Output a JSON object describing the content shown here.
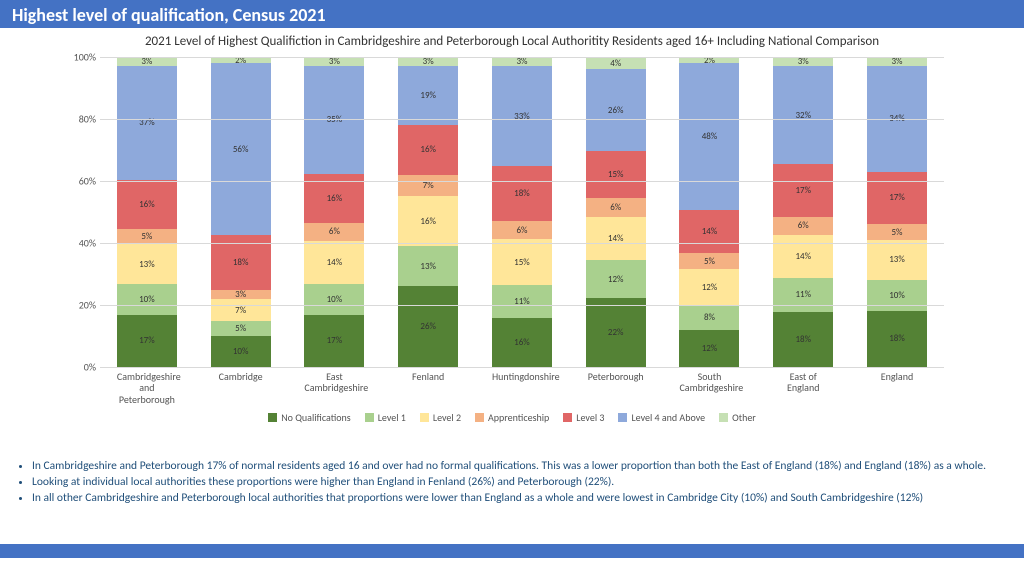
{
  "title": "Highest level of qualification, Census 2021",
  "chart": {
    "type": "stacked-bar-100",
    "title": "2021 Level of Highest Qualifiction in Cambridgeshire and Peterborough Local Authoritity Residents aged 16+ Including National Comparison",
    "ylim": [
      0,
      100
    ],
    "ytick_step": 20,
    "ytick_suffix": "%",
    "grid_color": "#d9d9d9",
    "background_color": "#ffffff",
    "categories": [
      "Cambridgeshire and Peterborough",
      "Cambridge",
      "East Cambridgeshire",
      "Fenland",
      "Huntingdonshire",
      "Peterborough",
      "South Cambridgeshire",
      "East of England",
      "England"
    ],
    "series": [
      {
        "name": "No Qualifications",
        "color": "#548235",
        "values": [
          17,
          10,
          17,
          26,
          16,
          22,
          12,
          18,
          18
        ]
      },
      {
        "name": "Level 1",
        "color": "#a9d08e",
        "values": [
          10,
          5,
          10,
          13,
          11,
          12,
          8,
          11,
          10
        ]
      },
      {
        "name": "Level 2",
        "color": "#ffe699",
        "values": [
          13,
          7,
          14,
          16,
          15,
          14,
          12,
          14,
          13
        ]
      },
      {
        "name": "Apprenticeship",
        "color": "#f4b183",
        "values": [
          5,
          3,
          6,
          7,
          6,
          6,
          5,
          6,
          5
        ]
      },
      {
        "name": "Level 3",
        "color": "#e06666",
        "values": [
          16,
          18,
          16,
          16,
          18,
          15,
          14,
          17,
          17
        ]
      },
      {
        "name": "Level 4 and Above",
        "color": "#8ea9db",
        "values": [
          37,
          56,
          35,
          19,
          33,
          26,
          48,
          32,
          34
        ]
      },
      {
        "name": "Other",
        "color": "#c6e0b4",
        "values": [
          3,
          2,
          3,
          3,
          3,
          4,
          2,
          3,
          3
        ]
      }
    ],
    "label_fontsize": 9,
    "axis_fontsize": 10,
    "title_fontsize": 13
  },
  "bullets": [
    "In Cambridgeshire and Peterborough 17% of normal residents aged 16 and over had no formal qualifications. This was a lower proportion than both the East of England (18%) and England (18%) as a whole.",
    "Looking at individual local authorities these proportions were higher than England in Fenland (26%) and Peterborough (22%).",
    "In all other Cambridgeshire and Peterborough local authorities that proportions were lower than England as a whole and were lowest in Cambridge City (10%) and South Cambridgeshire (12%)"
  ],
  "colors": {
    "header_bg": "#4472c4",
    "header_text": "#ffffff",
    "bullet_text": "#1f4e79"
  }
}
